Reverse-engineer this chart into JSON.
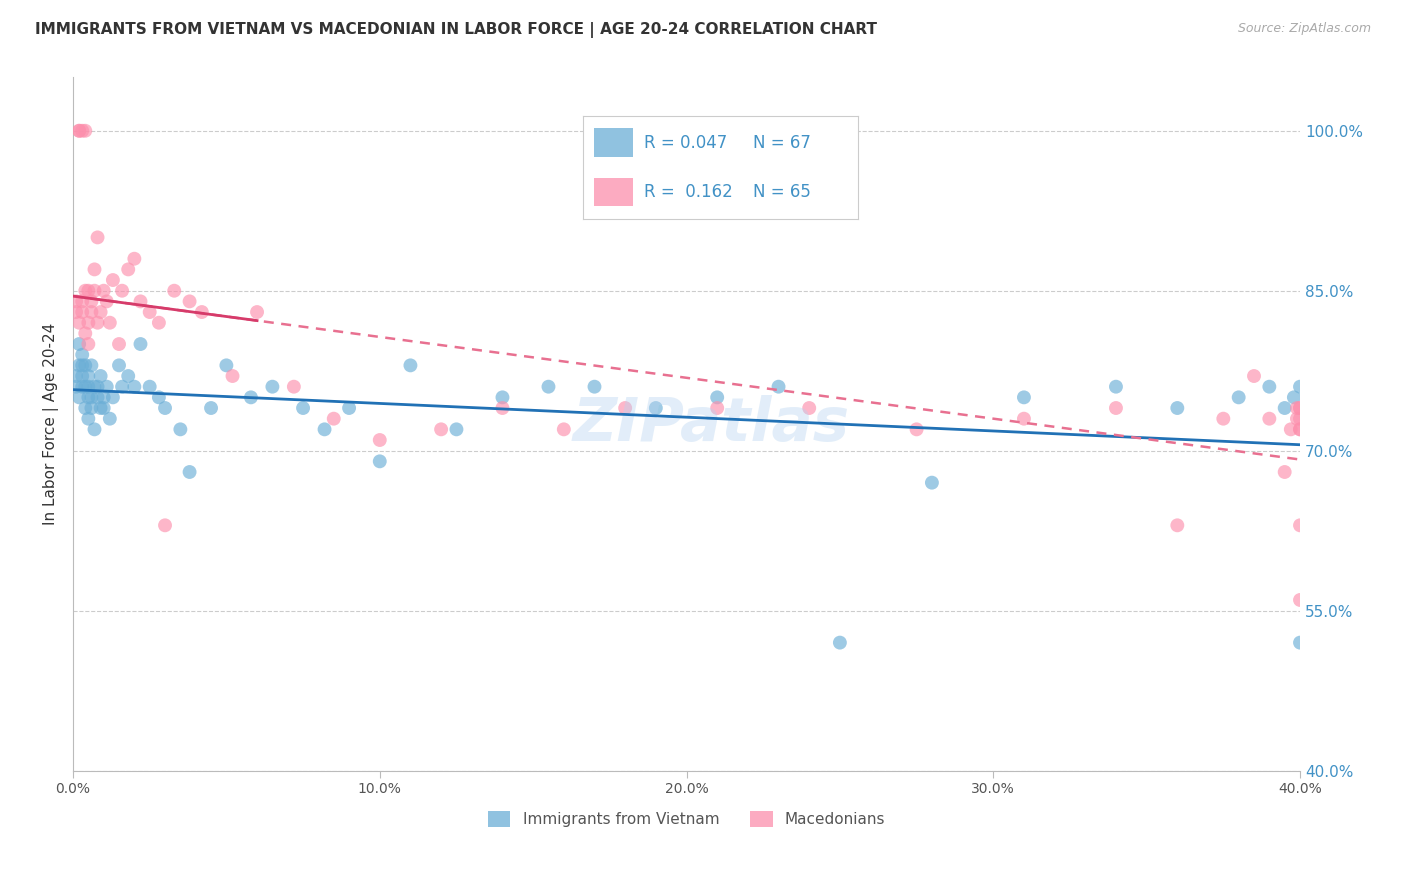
{
  "title": "IMMIGRANTS FROM VIETNAM VS MACEDONIAN IN LABOR FORCE | AGE 20-24 CORRELATION CHART",
  "source": "Source: ZipAtlas.com",
  "ylabel": "In Labor Force | Age 20-24",
  "xaxis_ticks": [
    "0.0%",
    "10.0%",
    "20.0%",
    "30.0%",
    "40.0%"
  ],
  "xaxis_tick_vals": [
    0.0,
    0.1,
    0.2,
    0.3,
    0.4
  ],
  "yaxis_ticks_right": [
    "100.0%",
    "85.0%",
    "70.0%",
    "55.0%",
    "40.0%"
  ],
  "yaxis_tick_vals": [
    1.0,
    0.85,
    0.7,
    0.55,
    0.4
  ],
  "legend1_r": "0.047",
  "legend1_n": "67",
  "legend2_r": "0.162",
  "legend2_n": "65",
  "color_blue": "#6baed6",
  "color_pink": "#fc8fac",
  "color_blue_line": "#2171b5",
  "color_pink_line": "#d63b6a",
  "color_pink_trend": "#e87090",
  "watermark": "ZIPatlas",
  "vietnam_x": [
    0.001,
    0.001,
    0.002,
    0.002,
    0.002,
    0.003,
    0.003,
    0.003,
    0.003,
    0.004,
    0.004,
    0.004,
    0.005,
    0.005,
    0.005,
    0.005,
    0.006,
    0.006,
    0.006,
    0.007,
    0.007,
    0.008,
    0.008,
    0.009,
    0.009,
    0.01,
    0.01,
    0.011,
    0.012,
    0.013,
    0.015,
    0.016,
    0.018,
    0.02,
    0.022,
    0.025,
    0.028,
    0.03,
    0.035,
    0.038,
    0.045,
    0.05,
    0.058,
    0.065,
    0.075,
    0.082,
    0.09,
    0.1,
    0.11,
    0.125,
    0.14,
    0.155,
    0.17,
    0.19,
    0.21,
    0.23,
    0.25,
    0.28,
    0.31,
    0.34,
    0.36,
    0.38,
    0.39,
    0.395,
    0.398,
    0.4,
    0.4
  ],
  "vietnam_y": [
    0.77,
    0.76,
    0.78,
    0.75,
    0.8,
    0.76,
    0.78,
    0.77,
    0.79,
    0.76,
    0.74,
    0.78,
    0.77,
    0.75,
    0.73,
    0.76,
    0.74,
    0.78,
    0.75,
    0.76,
    0.72,
    0.75,
    0.76,
    0.77,
    0.74,
    0.75,
    0.74,
    0.76,
    0.73,
    0.75,
    0.78,
    0.76,
    0.77,
    0.76,
    0.8,
    0.76,
    0.75,
    0.74,
    0.72,
    0.68,
    0.74,
    0.78,
    0.75,
    0.76,
    0.74,
    0.72,
    0.74,
    0.69,
    0.78,
    0.72,
    0.75,
    0.76,
    0.76,
    0.74,
    0.75,
    0.76,
    0.52,
    0.67,
    0.75,
    0.76,
    0.74,
    0.75,
    0.76,
    0.74,
    0.75,
    0.76,
    0.52
  ],
  "macedonian_x": [
    0.001,
    0.001,
    0.002,
    0.002,
    0.002,
    0.003,
    0.003,
    0.003,
    0.004,
    0.004,
    0.004,
    0.005,
    0.005,
    0.005,
    0.006,
    0.006,
    0.007,
    0.007,
    0.008,
    0.008,
    0.009,
    0.01,
    0.011,
    0.012,
    0.013,
    0.015,
    0.016,
    0.018,
    0.02,
    0.022,
    0.025,
    0.028,
    0.03,
    0.033,
    0.038,
    0.042,
    0.052,
    0.06,
    0.072,
    0.085,
    0.1,
    0.12,
    0.14,
    0.16,
    0.18,
    0.21,
    0.24,
    0.275,
    0.31,
    0.34,
    0.36,
    0.375,
    0.385,
    0.39,
    0.395,
    0.397,
    0.399,
    0.399,
    0.4,
    0.4,
    0.4,
    0.4,
    0.4,
    0.4,
    0.4
  ],
  "macedonian_y": [
    0.83,
    0.84,
    1.0,
    1.0,
    0.82,
    0.84,
    1.0,
    0.83,
    0.81,
    1.0,
    0.85,
    0.8,
    0.85,
    0.82,
    0.83,
    0.84,
    0.87,
    0.85,
    0.82,
    0.9,
    0.83,
    0.85,
    0.84,
    0.82,
    0.86,
    0.8,
    0.85,
    0.87,
    0.88,
    0.84,
    0.83,
    0.82,
    0.63,
    0.85,
    0.84,
    0.83,
    0.77,
    0.83,
    0.76,
    0.73,
    0.71,
    0.72,
    0.74,
    0.72,
    0.74,
    0.74,
    0.74,
    0.72,
    0.73,
    0.74,
    0.63,
    0.73,
    0.77,
    0.73,
    0.68,
    0.72,
    0.73,
    0.74,
    0.56,
    0.63,
    0.72,
    0.74,
    0.73,
    0.72,
    0.74
  ],
  "xlim": [
    0.0,
    0.4
  ],
  "ylim": [
    0.4,
    1.05
  ],
  "axis_label_color": "#333333",
  "right_axis_color": "#4292c6",
  "background_color": "#ffffff"
}
